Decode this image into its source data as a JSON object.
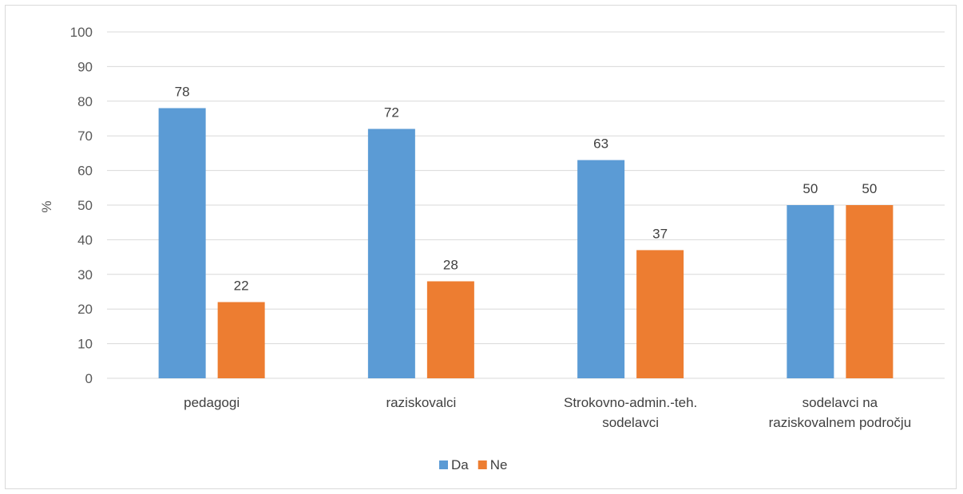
{
  "chart_data": {
    "type": "bar",
    "title": "",
    "xlabel": "",
    "ylabel": "%",
    "ylim": [
      0,
      100
    ],
    "yticks": [
      0,
      10,
      20,
      30,
      40,
      50,
      60,
      70,
      80,
      90,
      100
    ],
    "grid": true,
    "legend_position": "bottom",
    "categories": [
      [
        "pedagogi"
      ],
      [
        "raziskovalci"
      ],
      [
        "Strokovno-admin.-teh.",
        "sodelavci"
      ],
      [
        "sodelavci na",
        "raziskovalnem področju"
      ]
    ],
    "series": [
      {
        "name": "Da",
        "color": "#5B9BD5",
        "values": [
          78,
          72,
          63,
          50
        ]
      },
      {
        "name": "Ne",
        "color": "#ED7D31",
        "values": [
          22,
          28,
          37,
          50
        ]
      }
    ]
  }
}
